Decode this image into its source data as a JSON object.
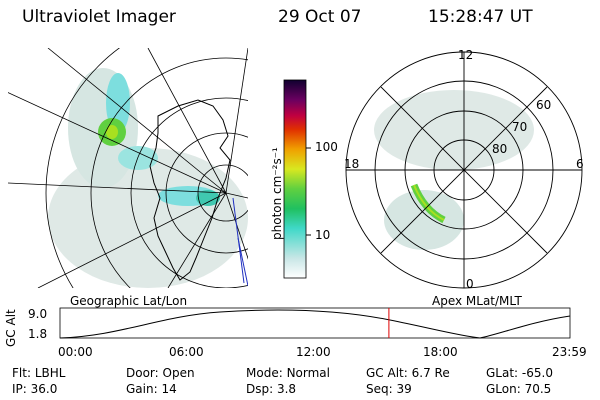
{
  "header": {
    "title": "Ultraviolet Imager",
    "date": "29 Oct 07",
    "time": "15:28:47 UT"
  },
  "colorbar": {
    "label": "photon cm⁻²s⁻¹",
    "ticks": [
      "100",
      "10"
    ]
  },
  "geo_panel": {
    "label": "Geographic Lat/Lon"
  },
  "polar_panel": {
    "label": "Apex MLat/MLT",
    "mlt_labels": {
      "top": "12",
      "left": "18",
      "right": "6",
      "bottom": "0"
    },
    "lat_labels": [
      "60",
      "70",
      "80"
    ]
  },
  "altitude_plot": {
    "ylabel": "GC Alt",
    "yticks": [
      "9.0",
      "1.8"
    ],
    "xticks": [
      "00:00",
      "06:00",
      "12:00",
      "18:00",
      "23:59"
    ],
    "current_time_fraction": 0.645
  },
  "info": {
    "row1": [
      {
        "k": "Flt:",
        "v": "LBHL"
      },
      {
        "k": "Door:",
        "v": "Open"
      },
      {
        "k": "Mode:",
        "v": "Normal"
      },
      {
        "k": "GC Alt:",
        "v": "6.7 Re"
      },
      {
        "k": "GLat:",
        "v": "-65.0"
      }
    ],
    "row2": [
      {
        "k": "IP:",
        "v": "36.0"
      },
      {
        "k": "Gain:",
        "v": "14"
      },
      {
        "k": "Dsp:",
        "v": "3.8"
      },
      {
        "k": "Seq:",
        "v": "39"
      },
      {
        "k": "GLon:",
        "v": "70.5"
      }
    ]
  },
  "colors": {
    "accent_red": "#e00000",
    "aurora_faint": "#c8ddd8",
    "aurora_cyan": "#40d8d8",
    "aurora_green": "#60d040"
  }
}
